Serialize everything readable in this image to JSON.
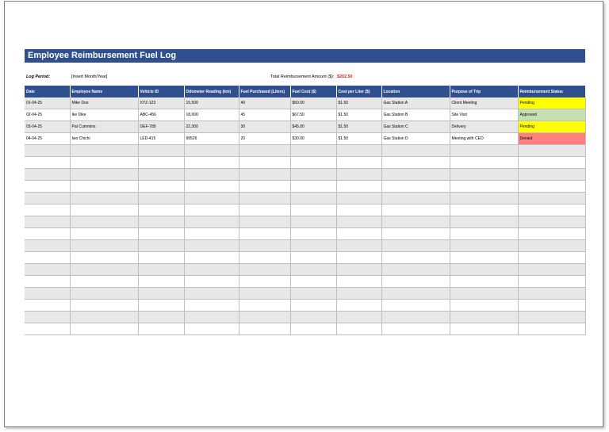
{
  "title": "Employee Reimbursement Fuel Log",
  "log_period": {
    "label": "Log Period:",
    "value": "[Insert Month/Year]"
  },
  "total": {
    "label": "Total Reimbursement Amount ($):",
    "value": "$202.50"
  },
  "columns": [
    "Date",
    "Employee Name",
    "Vehicle ID",
    "Odometer Reading (km)",
    "Fuel Purchased (Liters)",
    "Fuel Cost ($)",
    "Cost per Liter ($)",
    "Location",
    "Purpose of Trip",
    "Reimbursement Status"
  ],
  "rows": [
    [
      "01-04-25",
      "Mike Doe",
      "XYZ-123",
      "15,500",
      "40",
      "$60.00",
      "$1.50",
      "Gas Station A",
      "Client Meeting",
      "Pending"
    ],
    [
      "02-04-25",
      "Ike Dike",
      "ABC-456",
      "18,000",
      "45",
      "$67.50",
      "$1.50",
      "Gas Station B",
      "Site Visit",
      "Approved"
    ],
    [
      "03-04-25",
      "Pat Cummins",
      "DEF-789",
      "22,300",
      "30",
      "$45.00",
      "$1.50",
      "Gas Station C",
      "Delivery",
      "Pending"
    ],
    [
      "04-04-25",
      "Iwo Chichi",
      "LED-415",
      "99526",
      "20",
      "$30.00",
      "$1.50",
      "Gas Station D",
      "Meeting with CEO",
      "Denied"
    ]
  ],
  "status_colors": {
    "Pending": "#ffff00",
    "Approved": "#c6e0b4",
    "Denied": "#ff7f7f"
  },
  "header_color": "#2f4f8f"
}
